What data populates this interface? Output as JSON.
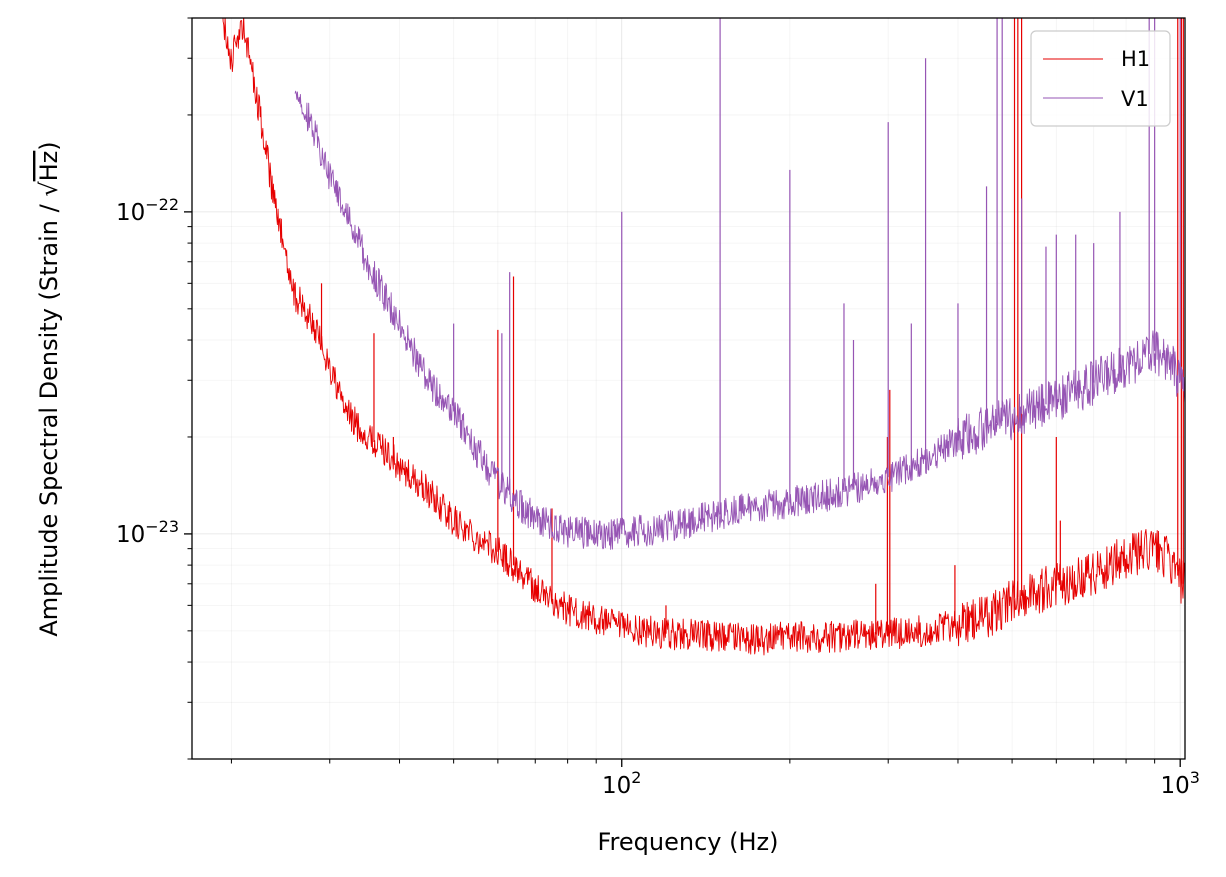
{
  "chart_data": {
    "type": "line",
    "xscale": "log",
    "yscale": "log",
    "xlim": [
      17,
      1020
    ],
    "ylim": [
      2e-24,
      4e-22
    ],
    "grid": true,
    "legend_position": "top-right",
    "xlabel": "Frequency (Hz)",
    "ylabel_text": "Amplitude Spectral Density (Strain / ",
    "ylabel_sqrt": "√",
    "ylabel_unit": "Hz",
    "ylabel_close": ")",
    "x_ticks": [
      {
        "value": 100,
        "base": "10",
        "exp": "2"
      },
      {
        "value": 1000,
        "base": "10",
        "exp": "3"
      }
    ],
    "y_ticks": [
      {
        "value": 1e-23,
        "base": "10",
        "exp": "−23"
      },
      {
        "value": 1e-22,
        "base": "10",
        "exp": "−22"
      }
    ],
    "colors": {
      "H1": "#e60000",
      "V1": "#9655b4"
    },
    "series": [
      {
        "name": "H1",
        "color": "#e60000",
        "x": [
          17,
          19,
          20,
          21,
          22,
          23,
          24,
          25,
          26,
          28,
          30,
          32,
          35,
          38,
          40,
          45,
          50,
          55,
          60,
          65,
          70,
          75,
          80,
          90,
          100,
          120,
          150,
          175,
          200,
          250,
          300,
          350,
          400,
          450,
          480,
          500,
          550,
          600,
          700,
          800,
          900,
          950,
          1000,
          1020
        ],
        "y": [
          5e-22,
          4.5e-22,
          3e-22,
          3.8e-22,
          2.5e-22,
          1.6e-22,
          1e-22,
          7.5e-23,
          5.5e-23,
          4.5e-23,
          3.3e-23,
          2.4e-23,
          2e-23,
          1.8e-23,
          1.6e-23,
          1.35e-23,
          1.1e-23,
          9.8e-24,
          8.8e-24,
          7.8e-24,
          6.8e-24,
          6.2e-24,
          5.8e-24,
          5.4e-24,
          5.1e-24,
          4.9e-24,
          4.8e-24,
          4.7e-24,
          4.8e-24,
          4.8e-24,
          4.9e-24,
          5e-24,
          5.2e-24,
          5.5e-24,
          5.9e-24,
          6.3e-24,
          6.6e-24,
          6.9e-24,
          7.6e-24,
          8.5e-24,
          9e-24,
          8.4e-24,
          7.2e-24,
          6.9e-24
        ],
        "peaks": [
          {
            "x": 29,
            "y": 6e-23
          },
          {
            "x": 36,
            "y": 4.2e-23
          },
          {
            "x": 39,
            "y": 2e-23
          },
          {
            "x": 60,
            "y": 4.3e-23
          },
          {
            "x": 64,
            "y": 6.3e-23
          },
          {
            "x": 75,
            "y": 1.2e-23
          },
          {
            "x": 120,
            "y": 6e-24
          },
          {
            "x": 285,
            "y": 7e-24
          },
          {
            "x": 299,
            "y": 2e-23
          },
          {
            "x": 302,
            "y": 2.8e-23
          },
          {
            "x": 395,
            "y": 8e-24
          },
          {
            "x": 505,
            "y": 2.2e-21
          },
          {
            "x": 512,
            "y": 2.2e-21
          },
          {
            "x": 520,
            "y": 1e-21
          },
          {
            "x": 600,
            "y": 2e-23
          },
          {
            "x": 610,
            "y": 1.1e-23
          },
          {
            "x": 990,
            "y": 1e-21
          },
          {
            "x": 1005,
            "y": 4.5e-22
          },
          {
            "x": 1013,
            "y": 8e-22
          }
        ]
      },
      {
        "name": "V1",
        "color": "#9655b4",
        "x": [
          26,
          28,
          30,
          32,
          35,
          38,
          40,
          42,
          45,
          50,
          55,
          60,
          65,
          70,
          80,
          90,
          100,
          120,
          150,
          175,
          200,
          250,
          300,
          350,
          400,
          450,
          500,
          550,
          600,
          700,
          800,
          850,
          900,
          950,
          1000,
          1020
        ],
        "y": [
          2.5e-22,
          1.8e-22,
          1.3e-22,
          1e-22,
          7e-23,
          5.3e-23,
          4.5e-23,
          3.8e-23,
          3e-23,
          2.4e-23,
          1.8e-23,
          1.45e-23,
          1.25e-23,
          1.12e-23,
          1.02e-23,
          1e-23,
          1e-23,
          1.05e-23,
          1.15e-23,
          1.22e-23,
          1.25e-23,
          1.35e-23,
          1.5e-23,
          1.7e-23,
          1.95e-23,
          2.15e-23,
          2.3e-23,
          2.45e-23,
          2.6e-23,
          2.95e-23,
          3.35e-23,
          3.5e-23,
          3.7e-23,
          3.5e-23,
          3e-23,
          2.9e-23
        ],
        "peaks": [
          {
            "x": 50,
            "y": 4.5e-23
          },
          {
            "x": 61,
            "y": 4.2e-23
          },
          {
            "x": 63,
            "y": 6.5e-23
          },
          {
            "x": 100,
            "y": 1e-22
          },
          {
            "x": 150,
            "y": 5e-22
          },
          {
            "x": 200,
            "y": 1.35e-22
          },
          {
            "x": 250,
            "y": 5.2e-23
          },
          {
            "x": 260,
            "y": 4e-23
          },
          {
            "x": 300,
            "y": 1.9e-22
          },
          {
            "x": 330,
            "y": 4.5e-23
          },
          {
            "x": 350,
            "y": 3e-22
          },
          {
            "x": 400,
            "y": 5.2e-23
          },
          {
            "x": 450,
            "y": 1.2e-22
          },
          {
            "x": 470,
            "y": 4.5e-22
          },
          {
            "x": 480,
            "y": 6.5e-22
          },
          {
            "x": 520,
            "y": 1.1e-22
          },
          {
            "x": 575,
            "y": 7.8e-23
          },
          {
            "x": 600,
            "y": 8.5e-23
          },
          {
            "x": 650,
            "y": 8.5e-23
          },
          {
            "x": 700,
            "y": 8e-23
          },
          {
            "x": 780,
            "y": 1e-22
          },
          {
            "x": 880,
            "y": 3e-21
          },
          {
            "x": 900,
            "y": 3e-21
          },
          {
            "x": 1000,
            "y": 1e-21
          }
        ]
      }
    ]
  }
}
